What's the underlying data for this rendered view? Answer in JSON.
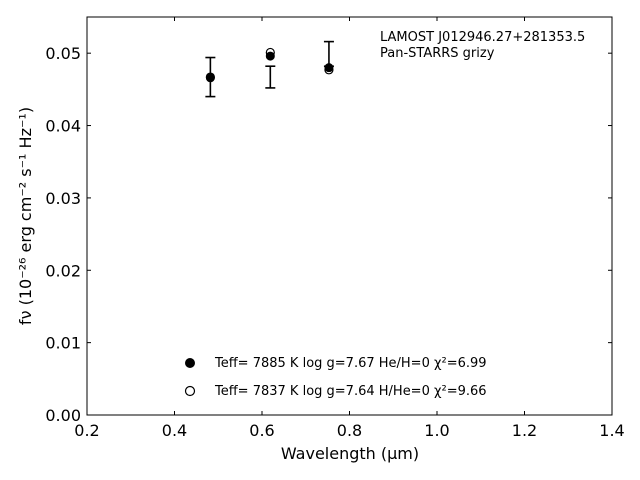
{
  "chart_data": {
    "type": "scatter",
    "title_lines": [
      "LAMOST J012946.27+281353.5",
      "Pan-STARRS grizy"
    ],
    "xlabel": "Wavelength (μm)",
    "ylabel": "fν (10⁻²⁶ erg cm⁻² s⁻¹ Hz⁻¹)",
    "xlim": [
      0.2,
      1.4
    ],
    "ylim": [
      0.0,
      0.055
    ],
    "xticks": [
      0.2,
      0.4,
      0.6,
      0.8,
      1.0,
      1.2,
      1.4
    ],
    "xtick_labels": [
      "0.2",
      "0.4",
      "0.6",
      "0.8",
      "1.0",
      "1.2",
      "1.4"
    ],
    "yticks": [
      0.0,
      0.01,
      0.02,
      0.03,
      0.04,
      0.05
    ],
    "ytick_labels": [
      "0.00",
      "0.01",
      "0.02",
      "0.03",
      "0.04",
      "0.05"
    ],
    "observed": {
      "x": [
        0.482,
        0.619,
        0.753
      ],
      "y": [
        0.0467,
        0.0467,
        0.0499
      ],
      "yerr": [
        0.0027,
        0.0015,
        0.0017
      ]
    },
    "model_filled": {
      "x": [
        0.482,
        0.619,
        0.753
      ],
      "y": [
        0.0466,
        0.0496,
        0.048
      ]
    },
    "model_open": {
      "x": [
        0.482,
        0.619,
        0.753
      ],
      "y": [
        0.0467,
        0.0501,
        0.0477
      ]
    },
    "legend": [
      {
        "marker": "filled",
        "text": "Teff=  7885 K  log g=7.67  He/H=0  χ²=6.99"
      },
      {
        "marker": "open",
        "text": "Teff=  7837 K  log g=7.64  H/He=0  χ²=9.66"
      }
    ]
  }
}
